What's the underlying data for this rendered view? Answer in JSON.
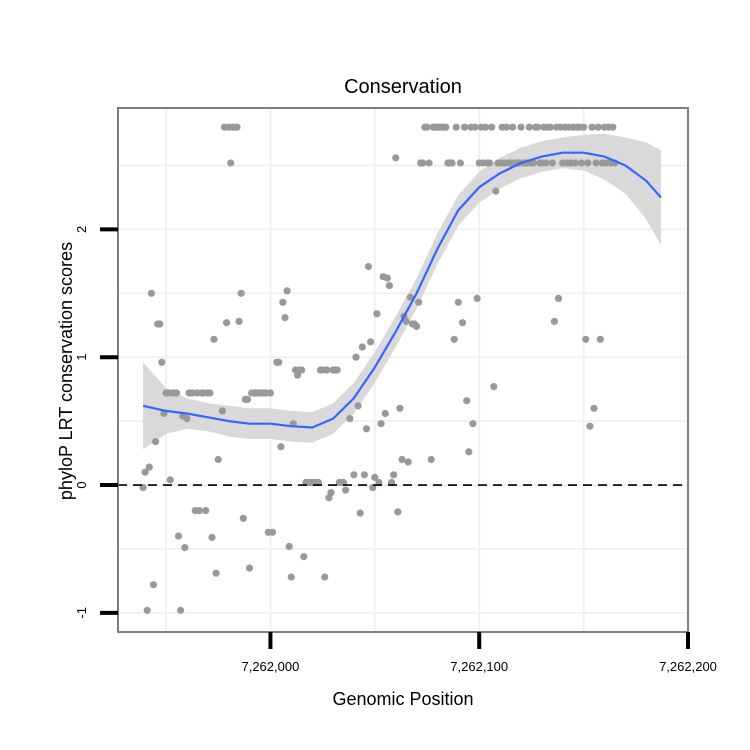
{
  "chart_data": {
    "type": "scatter",
    "title": "Conservation",
    "xlabel": "Genomic Position",
    "ylabel": "phyloP LRT conservation scores",
    "xlim": [
      7261927,
      7262200
    ],
    "ylim": [
      -1.15,
      2.95
    ],
    "x_ticks": [
      7262000,
      7262100,
      7262200
    ],
    "x_tick_labels": [
      "7,262,000",
      "7,262,100",
      "7,262,200"
    ],
    "y_ticks": [
      -1,
      0,
      1,
      2
    ],
    "y_tick_labels": [
      "-1",
      "0",
      "1",
      "2"
    ],
    "grid": true,
    "reference_line": {
      "y": 0,
      "style": "dashed",
      "color": "#000000"
    },
    "colors": {
      "points": "#999999",
      "smooth": "#3366ff",
      "ribbon": "#d9d9d9",
      "grid": "#f0f0f0",
      "panel_border": "#7f7f7f"
    },
    "series": [
      {
        "type": "points",
        "points": [
          [
            7261939,
            -0.02
          ],
          [
            7261940,
            0.1
          ],
          [
            7261941,
            -0.98
          ],
          [
            7261942,
            0.14
          ],
          [
            7261943,
            1.5
          ],
          [
            7261944,
            -0.78
          ],
          [
            7261945,
            0.34
          ],
          [
            7261946,
            1.26
          ],
          [
            7261947,
            1.26
          ],
          [
            7261948,
            0.96
          ],
          [
            7261949,
            0.56
          ],
          [
            7261950,
            0.72
          ],
          [
            7261951,
            0.72
          ],
          [
            7261952,
            0.04
          ],
          [
            7261953,
            0.72
          ],
          [
            7261954,
            0.72
          ],
          [
            7261955,
            0.72
          ],
          [
            7261956,
            -0.4
          ],
          [
            7261957,
            -0.98
          ],
          [
            7261958,
            0.54
          ],
          [
            7261959,
            -0.49
          ],
          [
            7261960,
            0.52
          ],
          [
            7261961,
            0.72
          ],
          [
            7261962,
            0.72
          ],
          [
            7261963,
            0.72
          ],
          [
            7261964,
            -0.2
          ],
          [
            7261965,
            0.72
          ],
          [
            7261966,
            -0.2
          ],
          [
            7261967,
            0.72
          ],
          [
            7261968,
            0.72
          ],
          [
            7261969,
            -0.2
          ],
          [
            7261970,
            0.72
          ],
          [
            7261971,
            0.72
          ],
          [
            7261972,
            -0.41
          ],
          [
            7261973,
            1.14
          ],
          [
            7261974,
            -0.69
          ],
          [
            7261975,
            0.2
          ],
          [
            7261977,
            0.58
          ],
          [
            7261978,
            2.8
          ],
          [
            7261979,
            1.27
          ],
          [
            7261980,
            2.8
          ],
          [
            7261981,
            2.52
          ],
          [
            7261982,
            2.8
          ],
          [
            7261983,
            2.8
          ],
          [
            7261984,
            2.8
          ],
          [
            7261985,
            1.28
          ],
          [
            7261986,
            1.5
          ],
          [
            7261987,
            -0.26
          ],
          [
            7261988,
            0.67
          ],
          [
            7261989,
            0.67
          ],
          [
            7261990,
            -0.65
          ],
          [
            7261991,
            0.72
          ],
          [
            7261992,
            0.72
          ],
          [
            7261993,
            0.72
          ],
          [
            7261994,
            0.72
          ],
          [
            7261995,
            0.72
          ],
          [
            7261996,
            0.72
          ],
          [
            7261997,
            0.72
          ],
          [
            7261998,
            0.72
          ],
          [
            7261999,
            -0.37
          ],
          [
            7262000,
            0.72
          ],
          [
            7262001,
            -0.37
          ],
          [
            7262003,
            0.96
          ],
          [
            7262004,
            0.96
          ],
          [
            7262005,
            0.3
          ],
          [
            7262006,
            1.43
          ],
          [
            7262007,
            1.31
          ],
          [
            7262008,
            1.52
          ],
          [
            7262009,
            -0.48
          ],
          [
            7262010,
            -0.72
          ],
          [
            7262011,
            0.48
          ],
          [
            7262012,
            0.9
          ],
          [
            7262013,
            0.86
          ],
          [
            7262014,
            0.9
          ],
          [
            7262015,
            0.9
          ],
          [
            7262016,
            -0.56
          ],
          [
            7262017,
            0.02
          ],
          [
            7262018,
            0.02
          ],
          [
            7262019,
            0.02
          ],
          [
            7262020,
            0.02
          ],
          [
            7262021,
            0.02
          ],
          [
            7262022,
            0.02
          ],
          [
            7262023,
            0.02
          ],
          [
            7262024,
            0.9
          ],
          [
            7262025,
            0.9
          ],
          [
            7262026,
            -0.72
          ],
          [
            7262027,
            0.9
          ],
          [
            7262028,
            -0.1
          ],
          [
            7262029,
            -0.06
          ],
          [
            7262030,
            0.9
          ],
          [
            7262031,
            0.9
          ],
          [
            7262032,
            0.9
          ],
          [
            7262033,
            0.02
          ],
          [
            7262034,
            0.02
          ],
          [
            7262035,
            0.02
          ],
          [
            7262036,
            -0.04
          ],
          [
            7262038,
            0.52
          ],
          [
            7262040,
            0.08
          ],
          [
            7262041,
            1.0
          ],
          [
            7262042,
            0.62
          ],
          [
            7262043,
            -0.22
          ],
          [
            7262044,
            1.08
          ],
          [
            7262045,
            0.08
          ],
          [
            7262046,
            0.44
          ],
          [
            7262047,
            1.71
          ],
          [
            7262048,
            1.12
          ],
          [
            7262049,
            -0.02
          ],
          [
            7262050,
            0.06
          ],
          [
            7262051,
            1.34
          ],
          [
            7262052,
            0.02
          ],
          [
            7262053,
            0.48
          ],
          [
            7262054,
            1.63
          ],
          [
            7262055,
            0.56
          ],
          [
            7262056,
            1.62
          ],
          [
            7262057,
            1.56
          ],
          [
            7262058,
            0.02
          ],
          [
            7262059,
            0.08
          ],
          [
            7262060,
            2.56
          ],
          [
            7262061,
            -0.21
          ],
          [
            7262062,
            0.6
          ],
          [
            7262063,
            0.2
          ],
          [
            7262064,
            1.32
          ],
          [
            7262065,
            1.28
          ],
          [
            7262066,
            0.18
          ],
          [
            7262067,
            1.47
          ],
          [
            7262068,
            1.26
          ],
          [
            7262069,
            1.26
          ],
          [
            7262070,
            1.24
          ],
          [
            7262071,
            1.43
          ],
          [
            7262072,
            2.52
          ],
          [
            7262073,
            2.52
          ],
          [
            7262074,
            2.8
          ],
          [
            7262075,
            2.8
          ],
          [
            7262076,
            2.52
          ],
          [
            7262077,
            0.2
          ],
          [
            7262078,
            2.8
          ],
          [
            7262079,
            2.8
          ],
          [
            7262080,
            2.8
          ],
          [
            7262081,
            2.8
          ],
          [
            7262082,
            2.8
          ],
          [
            7262083,
            2.8
          ],
          [
            7262084,
            2.8
          ],
          [
            7262085,
            2.52
          ],
          [
            7262086,
            2.52
          ],
          [
            7262087,
            2.52
          ],
          [
            7262088,
            1.14
          ],
          [
            7262089,
            2.8
          ],
          [
            7262090,
            1.43
          ],
          [
            7262091,
            2.52
          ],
          [
            7262092,
            1.27
          ],
          [
            7262093,
            2.8
          ],
          [
            7262094,
            0.66
          ],
          [
            7262095,
            0.26
          ],
          [
            7262096,
            2.8
          ],
          [
            7262097,
            0.48
          ],
          [
            7262098,
            2.8
          ],
          [
            7262099,
            1.46
          ],
          [
            7262100,
            2.52
          ],
          [
            7262101,
            2.8
          ],
          [
            7262102,
            2.52
          ],
          [
            7262103,
            2.8
          ],
          [
            7262104,
            2.52
          ],
          [
            7262105,
            2.52
          ],
          [
            7262106,
            2.8
          ],
          [
            7262107,
            0.77
          ],
          [
            7262108,
            2.3
          ],
          [
            7262109,
            2.52
          ],
          [
            7262110,
            2.52
          ],
          [
            7262111,
            2.8
          ],
          [
            7262112,
            2.52
          ],
          [
            7262113,
            2.8
          ],
          [
            7262114,
            2.52
          ],
          [
            7262115,
            2.52
          ],
          [
            7262116,
            2.8
          ],
          [
            7262117,
            2.52
          ],
          [
            7262118,
            2.52
          ],
          [
            7262119,
            2.52
          ],
          [
            7262120,
            2.8
          ],
          [
            7262121,
            2.52
          ],
          [
            7262122,
            2.52
          ],
          [
            7262123,
            2.52
          ],
          [
            7262124,
            2.8
          ],
          [
            7262125,
            2.52
          ],
          [
            7262126,
            2.52
          ],
          [
            7262127,
            2.8
          ],
          [
            7262128,
            2.8
          ],
          [
            7262129,
            2.52
          ],
          [
            7262130,
            2.52
          ],
          [
            7262131,
            2.8
          ],
          [
            7262132,
            2.52
          ],
          [
            7262133,
            2.8
          ],
          [
            7262134,
            2.8
          ],
          [
            7262135,
            2.52
          ],
          [
            7262136,
            1.28
          ],
          [
            7262137,
            2.8
          ],
          [
            7262138,
            1.46
          ],
          [
            7262139,
            2.8
          ],
          [
            7262140,
            2.52
          ],
          [
            7262141,
            2.8
          ],
          [
            7262142,
            2.52
          ],
          [
            7262143,
            2.8
          ],
          [
            7262144,
            2.52
          ],
          [
            7262145,
            2.8
          ],
          [
            7262146,
            2.52
          ],
          [
            7262147,
            2.8
          ],
          [
            7262148,
            2.8
          ],
          [
            7262149,
            2.52
          ],
          [
            7262150,
            2.8
          ],
          [
            7262151,
            1.14
          ],
          [
            7262152,
            2.52
          ],
          [
            7262153,
            0.46
          ],
          [
            7262154,
            2.8
          ],
          [
            7262155,
            0.6
          ],
          [
            7262156,
            2.52
          ],
          [
            7262157,
            2.8
          ],
          [
            7262158,
            1.14
          ],
          [
            7262159,
            2.52
          ],
          [
            7262160,
            2.8
          ],
          [
            7262161,
            2.52
          ],
          [
            7262162,
            2.8
          ],
          [
            7262163,
            2.52
          ],
          [
            7262164,
            2.8
          ],
          [
            7262165,
            2.52
          ]
        ]
      },
      {
        "type": "smooth",
        "x": [
          7261939,
          7261950,
          7261960,
          7261970,
          7261980,
          7261990,
          7262000,
          7262010,
          7262020,
          7262030,
          7262040,
          7262050,
          7262060,
          7262070,
          7262080,
          7262090,
          7262100,
          7262110,
          7262120,
          7262130,
          7262140,
          7262150,
          7262160,
          7262170,
          7262180,
          7262187
        ],
        "y": [
          0.62,
          0.58,
          0.56,
          0.53,
          0.5,
          0.48,
          0.48,
          0.46,
          0.45,
          0.52,
          0.68,
          0.92,
          1.2,
          1.5,
          1.85,
          2.15,
          2.33,
          2.44,
          2.52,
          2.57,
          2.6,
          2.6,
          2.57,
          2.5,
          2.38,
          2.25
        ],
        "ci_lower": [
          0.28,
          0.4,
          0.44,
          0.42,
          0.38,
          0.36,
          0.36,
          0.34,
          0.33,
          0.4,
          0.56,
          0.8,
          1.08,
          1.38,
          1.73,
          2.03,
          2.21,
          2.32,
          2.4,
          2.45,
          2.48,
          2.46,
          2.39,
          2.28,
          2.08,
          1.88
        ],
        "ci_upper": [
          0.96,
          0.76,
          0.68,
          0.64,
          0.62,
          0.6,
          0.6,
          0.58,
          0.57,
          0.64,
          0.8,
          1.04,
          1.32,
          1.62,
          1.97,
          2.27,
          2.45,
          2.56,
          2.64,
          2.69,
          2.72,
          2.74,
          2.75,
          2.72,
          2.68,
          2.62
        ]
      }
    ]
  }
}
